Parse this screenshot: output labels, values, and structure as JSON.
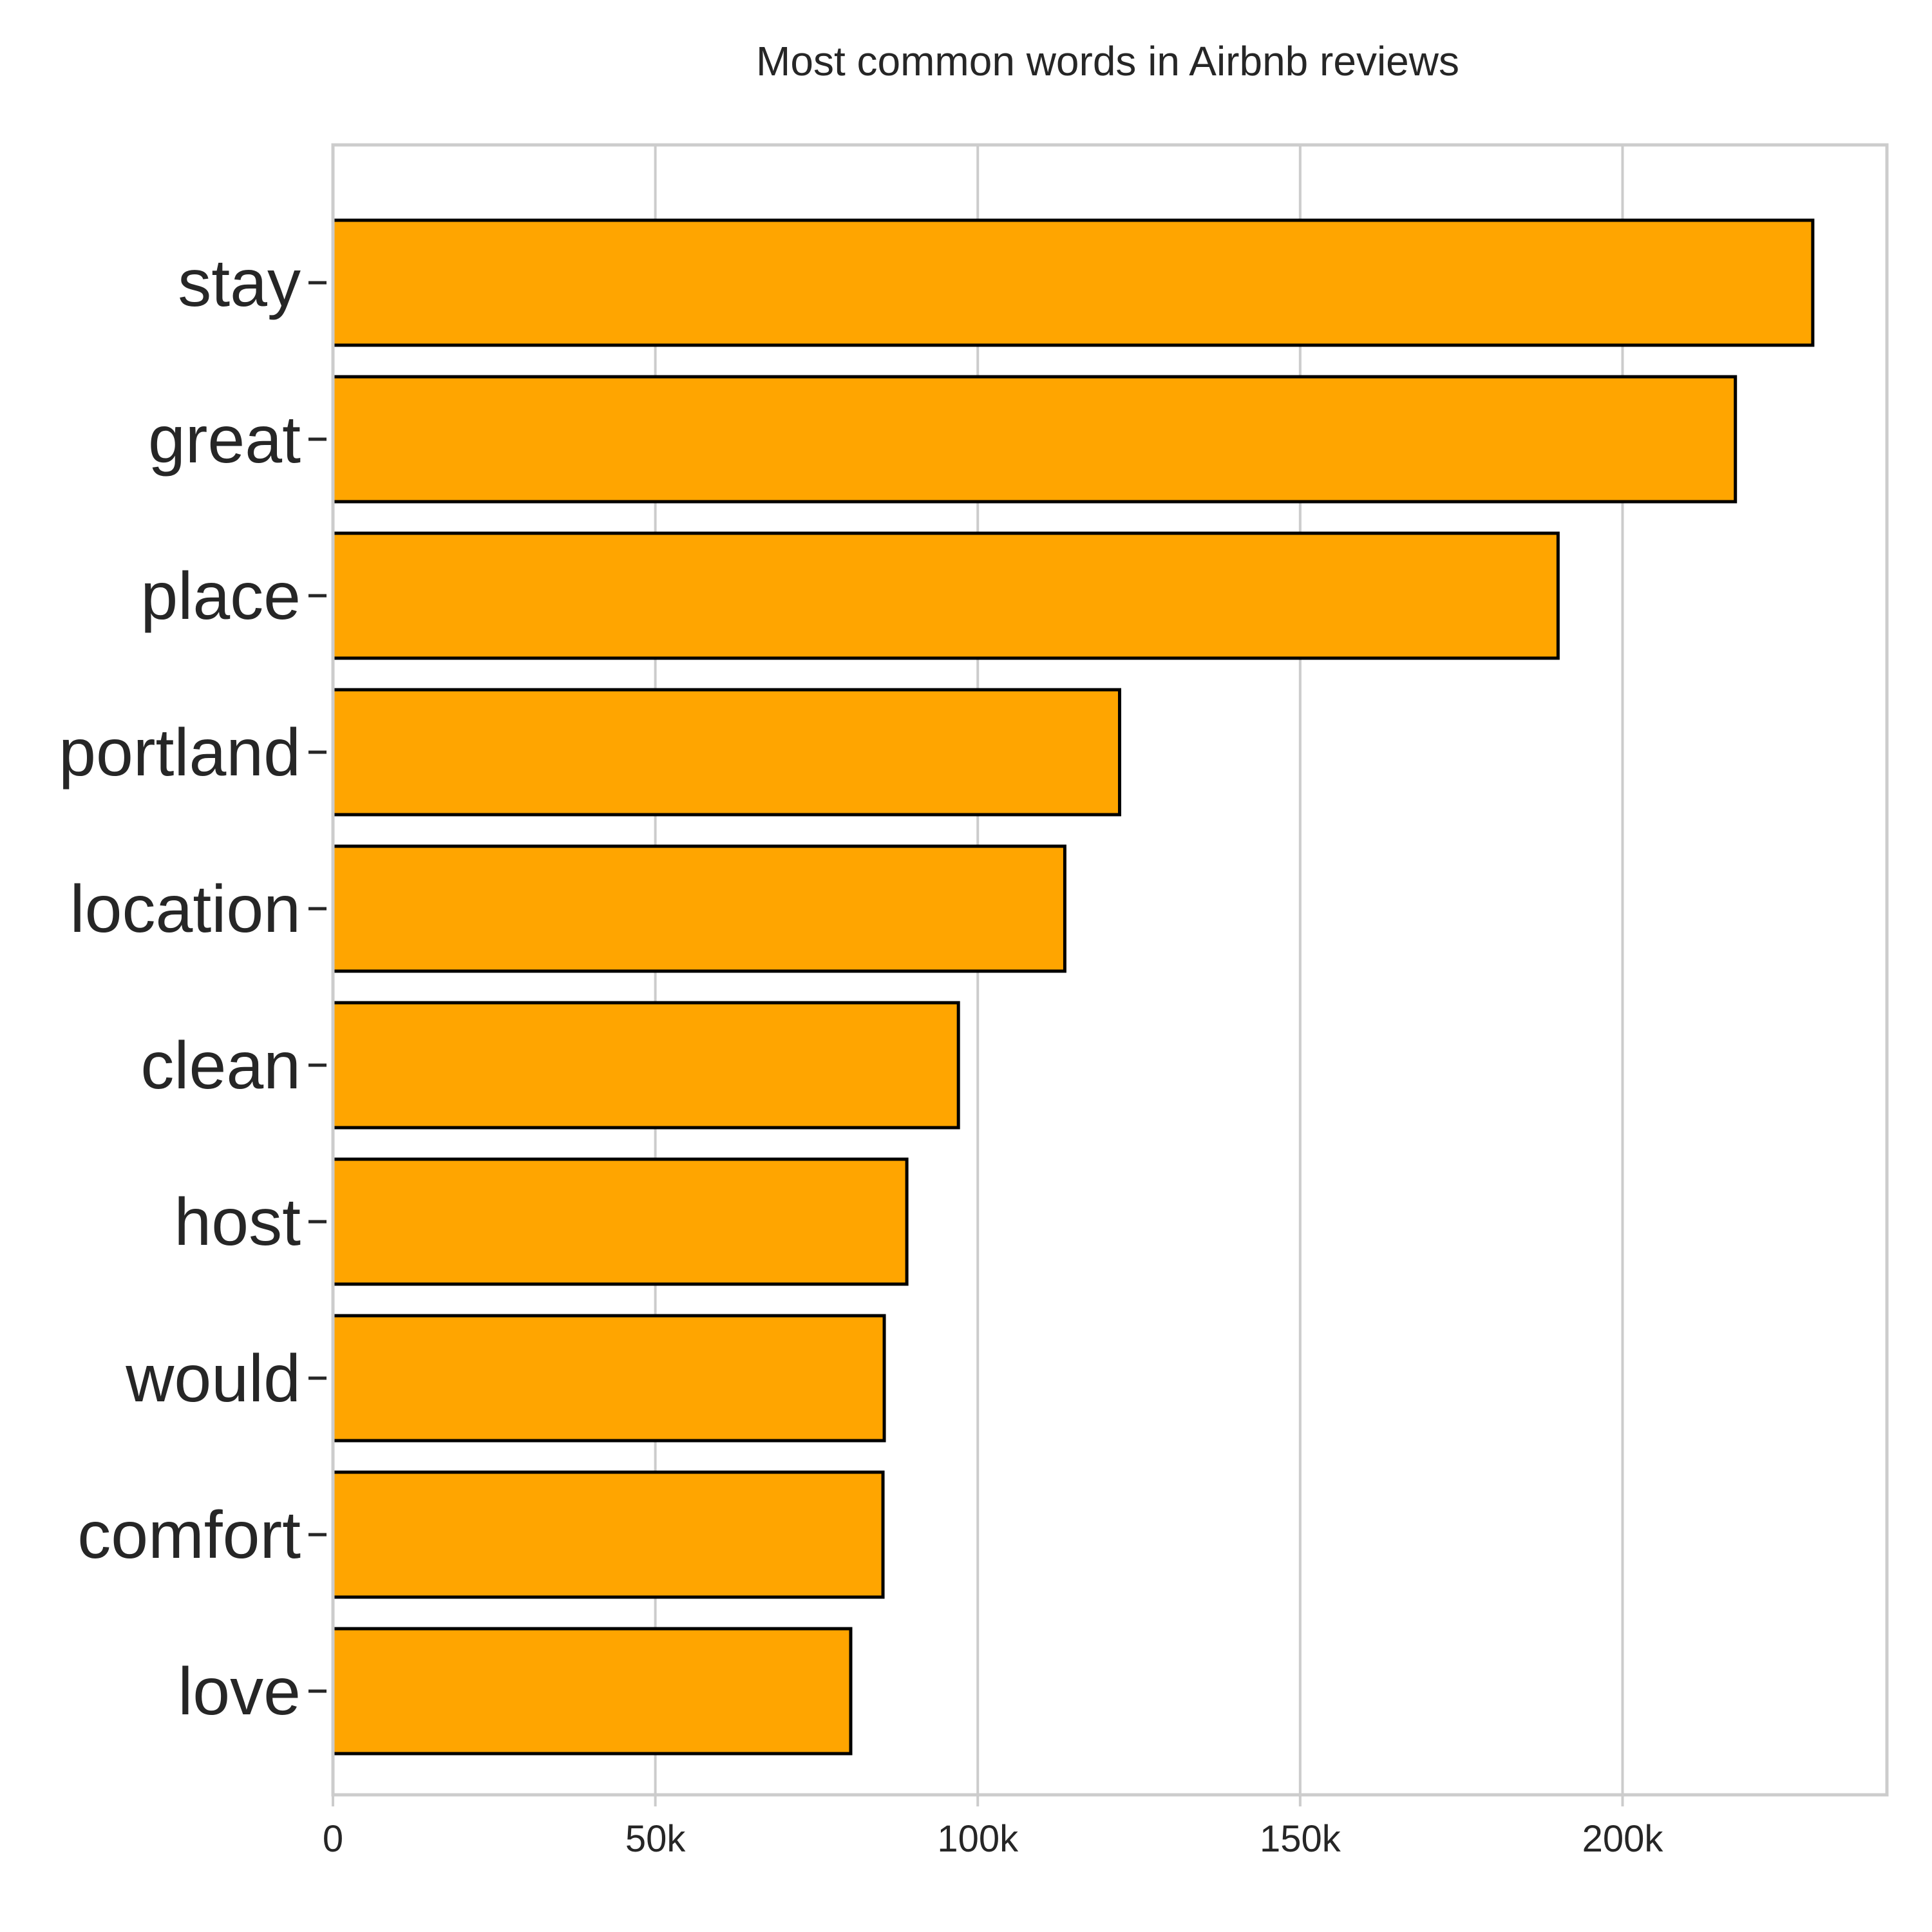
{
  "chart_data": {
    "type": "bar",
    "orientation": "horizontal",
    "title": "Most common words in Airbnb reviews",
    "xlabel": "",
    "ylabel": "",
    "categories": [
      "stay",
      "great",
      "place",
      "portland",
      "location",
      "clean",
      "host",
      "would",
      "comfort",
      "love"
    ],
    "values": [
      229500,
      217500,
      190000,
      122000,
      113500,
      97000,
      89000,
      85500,
      85300,
      80300
    ],
    "xlim": [
      0,
      241000
    ],
    "xticks": [
      0,
      50000,
      100000,
      150000,
      200000
    ],
    "xtick_labels": [
      "0",
      "50k",
      "100k",
      "150k",
      "200k"
    ],
    "bar_color": "#FFA500",
    "edge_color": "#000000",
    "grid": "vertical",
    "legend": "none"
  }
}
